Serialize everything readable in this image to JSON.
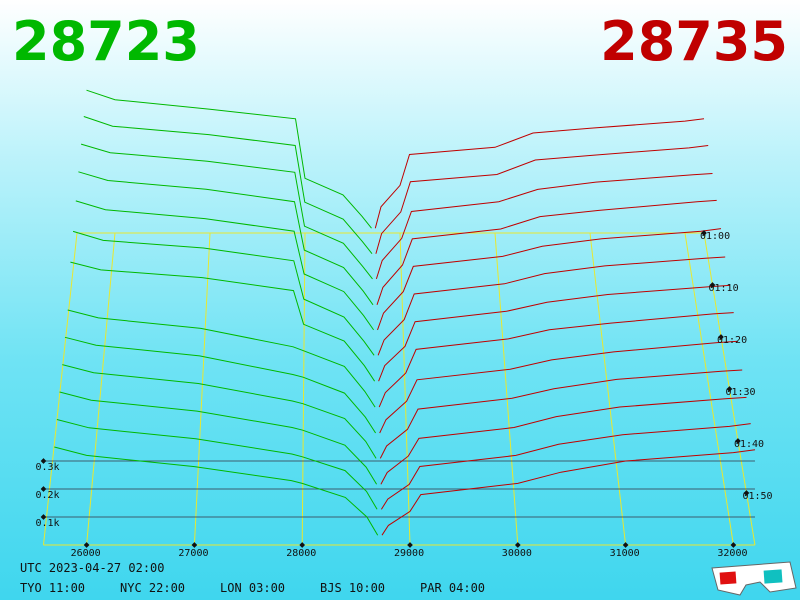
{
  "chart_data": {
    "type": "depth3d",
    "bid_price": 28723,
    "ask_price": 28735,
    "bid_color": "#00b800",
    "ask_color": "#c00000",
    "price_lim": [
      25600,
      32200
    ],
    "price_ticks": [
      26000,
      27000,
      28000,
      29000,
      30000,
      31000,
      32000
    ],
    "depth_ticks": [
      {
        "value": 100,
        "label": "0.1k"
      },
      {
        "value": 200,
        "label": "0.2k"
      },
      {
        "value": 300,
        "label": "0.3k"
      }
    ],
    "time_lim": [
      60,
      120
    ],
    "time_ticks": [
      {
        "value": 60,
        "label": "01:00"
      },
      {
        "value": 70,
        "label": "01:10"
      },
      {
        "value": 80,
        "label": "01:20"
      },
      {
        "value": 90,
        "label": "01:30"
      },
      {
        "value": 100,
        "label": "01:40"
      },
      {
        "value": 110,
        "label": "01:50"
      }
    ],
    "bid_prices": [
      28700,
      28600,
      28400,
      28000,
      27900,
      27000,
      26000,
      25700
    ],
    "ask_prices": [
      28740,
      28800,
      29000,
      29100,
      30000,
      30400,
      31000,
      32000,
      32200
    ],
    "snapshots": [
      {
        "minute": 60,
        "bids": [
          20,
          70,
          160,
          230,
          480,
          520,
          560,
          600
        ],
        "asks": [
          20,
          110,
          200,
          330,
          360,
          420,
          440,
          470,
          480
        ]
      },
      {
        "minute": 65,
        "bids": [
          22,
          72,
          165,
          235,
          470,
          515,
          550,
          590
        ],
        "asks": [
          22,
          105,
          195,
          320,
          350,
          410,
          430,
          460,
          470
        ]
      },
      {
        "minute": 70,
        "bids": [
          25,
          75,
          170,
          240,
          460,
          505,
          540,
          575
        ],
        "asks": [
          25,
          100,
          190,
          300,
          340,
          390,
          420,
          450,
          455
        ]
      },
      {
        "minute": 75,
        "bids": [
          25,
          80,
          175,
          245,
          440,
          490,
          525,
          560
        ],
        "asks": [
          25,
          95,
          185,
          290,
          330,
          380,
          405,
          440,
          445
        ]
      },
      {
        "minute": 80,
        "bids": [
          28,
          85,
          180,
          250,
          420,
          470,
          505,
          540
        ],
        "asks": [
          28,
          95,
          180,
          280,
          320,
          360,
          390,
          420,
          430
        ]
      },
      {
        "minute": 85,
        "bids": [
          30,
          85,
          180,
          250,
          400,
          450,
          480,
          515
        ],
        "asks": [
          30,
          90,
          170,
          270,
          310,
          350,
          380,
          410,
          415
        ]
      },
      {
        "minute": 90,
        "bids": [
          30,
          90,
          185,
          250,
          380,
          430,
          460,
          490
        ],
        "asks": [
          30,
          90,
          165,
          260,
          300,
          335,
          365,
          395,
          400
        ]
      },
      {
        "minute": 95,
        "bids": [
          30,
          90,
          185,
          245,
          260,
          330,
          370,
          400
        ],
        "asks": [
          30,
          85,
          160,
          250,
          290,
          325,
          350,
          385,
          390
        ]
      },
      {
        "minute": 100,
        "bids": [
          30,
          90,
          180,
          240,
          250,
          320,
          360,
          390
        ],
        "asks": [
          30,
          80,
          150,
          230,
          270,
          305,
          335,
          370,
          375
        ]
      },
      {
        "minute": 105,
        "bids": [
          32,
          95,
          180,
          235,
          245,
          310,
          350,
          380
        ],
        "asks": [
          32,
          78,
          140,
          215,
          255,
          290,
          325,
          355,
          360
        ]
      },
      {
        "minute": 110,
        "bids": [
          32,
          95,
          175,
          230,
          240,
          300,
          340,
          370
        ],
        "asks": [
          32,
          75,
          135,
          200,
          240,
          280,
          315,
          345,
          350
        ]
      },
      {
        "minute": 115,
        "bids": [
          35,
          100,
          175,
          225,
          235,
          290,
          330,
          360
        ],
        "asks": [
          35,
          72,
          125,
          190,
          230,
          270,
          305,
          335,
          345
        ]
      },
      {
        "minute": 120,
        "bids": [
          35,
          100,
          170,
          220,
          230,
          280,
          320,
          350
        ],
        "asks": [
          35,
          70,
          120,
          180,
          220,
          260,
          300,
          330,
          340
        ]
      }
    ]
  },
  "footer": {
    "utc": "UTC 2023-04-27 02:00",
    "clocks": [
      "TYO 11:00",
      "NYC 22:00",
      "LON 03:00",
      "BJS 10:00",
      "PAR 04:00"
    ]
  }
}
